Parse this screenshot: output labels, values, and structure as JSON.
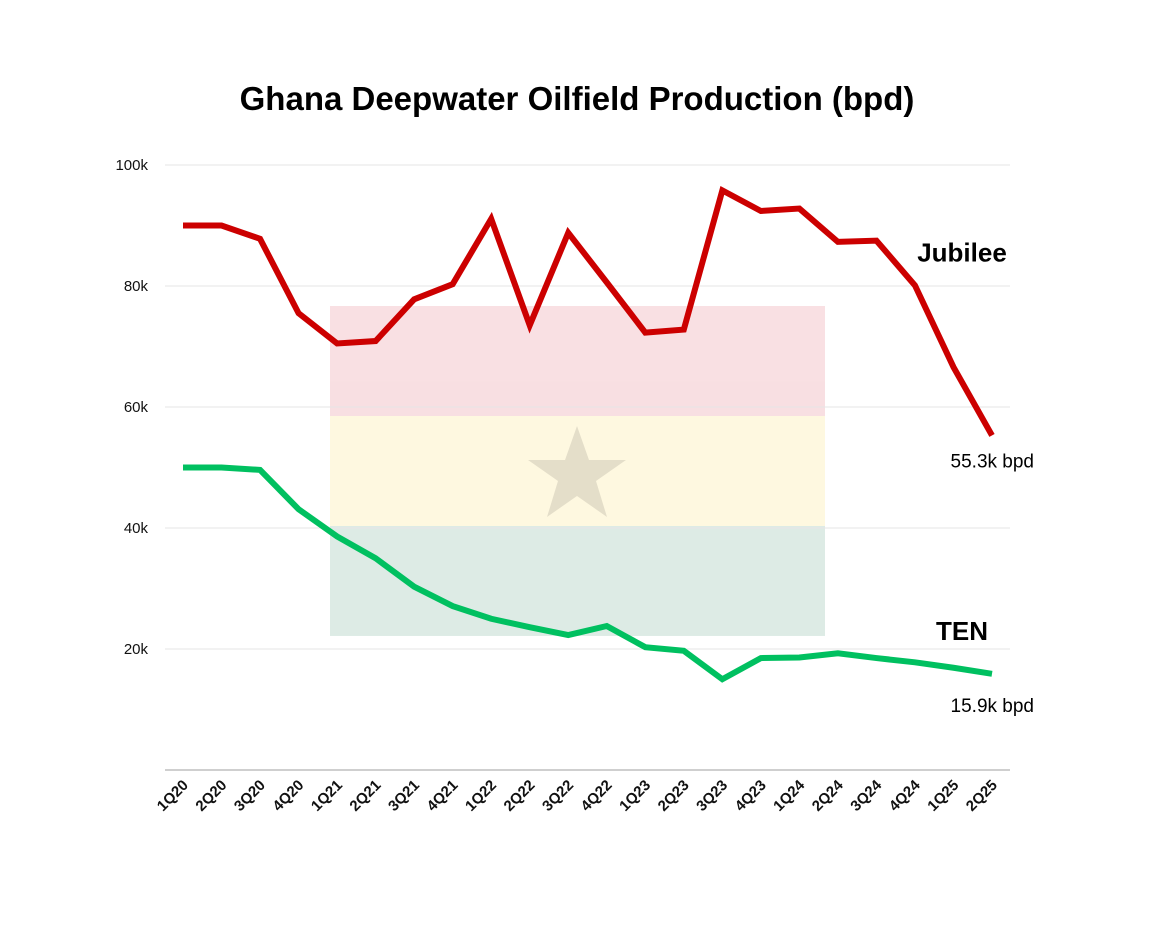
{
  "chart_data": {
    "type": "line",
    "title": "Ghana Deepwater Oilfield Production (bpd)",
    "xlabel": "",
    "ylabel": "",
    "ylim": [
      0,
      100000
    ],
    "yticks": [
      {
        "value": 100000,
        "label": "100k"
      },
      {
        "value": 80000,
        "label": "80k"
      },
      {
        "value": 60000,
        "label": "60k"
      },
      {
        "value": 40000,
        "label": "40k"
      },
      {
        "value": 20000,
        "label": "20k"
      }
    ],
    "categories": [
      "1Q20",
      "2Q20",
      "3Q20",
      "4Q20",
      "1Q21",
      "2Q21",
      "3Q21",
      "4Q21",
      "1Q22",
      "2Q22",
      "3Q22",
      "4Q22",
      "1Q23",
      "2Q23",
      "3Q23",
      "4Q23",
      "1Q24",
      "2Q24",
      "3Q24",
      "4Q24",
      "1Q25",
      "2Q25"
    ],
    "series": [
      {
        "name": "Jubilee",
        "color": "#cc0000",
        "values": [
          90000,
          90000,
          87800,
          75500,
          70500,
          70900,
          77800,
          80300,
          91100,
          73500,
          88800,
          80600,
          72300,
          72800,
          95800,
          92400,
          92800,
          87300,
          87500,
          80100,
          66600,
          55300
        ],
        "end_label": "55.3k bpd"
      },
      {
        "name": "TEN",
        "color": "#00c060",
        "values": [
          50000,
          50000,
          49600,
          43100,
          38600,
          35000,
          30300,
          27100,
          25000,
          23600,
          22300,
          23800,
          20300,
          19700,
          15000,
          18500,
          18600,
          19300,
          18500,
          17800,
          16900,
          15900
        ],
        "end_label": "15.9k bpd"
      }
    ],
    "background_graphic": {
      "description": "faded Ghana flag",
      "colors": [
        "#ce1126",
        "#fcd116",
        "#006b3f",
        "#000000"
      ]
    }
  }
}
